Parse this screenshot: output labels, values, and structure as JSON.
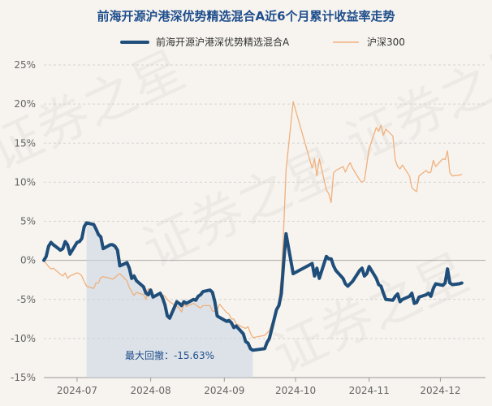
{
  "chart_data": {
    "type": "line",
    "title": "前海开源沪港深优势精选混合A近6个月累计收益率走势",
    "xlabel": "",
    "ylabel": "",
    "y_unit": "%",
    "ylim": [
      -15,
      25
    ],
    "y_ticks": [
      -15,
      -10,
      -5,
      0,
      5,
      10,
      15,
      20,
      25
    ],
    "y_tick_labels": [
      "-15%",
      "-10%",
      "-5%",
      "0%",
      "5%",
      "10%",
      "15%",
      "20%",
      "25%"
    ],
    "x_range": [
      "2024-06-17",
      "2024-12-20"
    ],
    "x_ticks": [
      "2024-07-01",
      "2024-08-01",
      "2024-09-01",
      "2024-10-01",
      "2024-11-01",
      "2024-12-01"
    ],
    "x_tick_labels": [
      "2024-07",
      "2024-08",
      "2024-09",
      "2024-10",
      "2024-11",
      "2024-12"
    ],
    "grid": true,
    "legend_position": "top",
    "series": [
      {
        "name": "前海开源沪港深优势精选混合A",
        "color": "#1f4e7a",
        "points": [
          [
            "2024-06-17",
            0.0
          ],
          [
            "2024-06-18",
            0.5
          ],
          [
            "2024-06-19",
            1.8
          ],
          [
            "2024-06-20",
            2.3
          ],
          [
            "2024-06-21",
            2.0
          ],
          [
            "2024-06-24",
            1.3
          ],
          [
            "2024-06-25",
            1.5
          ],
          [
            "2024-06-26",
            2.4
          ],
          [
            "2024-06-27",
            2.0
          ],
          [
            "2024-06-28",
            0.8
          ],
          [
            "2024-07-01",
            2.3
          ],
          [
            "2024-07-02",
            2.4
          ],
          [
            "2024-07-03",
            2.8
          ],
          [
            "2024-07-04",
            4.3
          ],
          [
            "2024-07-05",
            4.8
          ],
          [
            "2024-07-08",
            4.6
          ],
          [
            "2024-07-09",
            4.0
          ],
          [
            "2024-07-10",
            3.3
          ],
          [
            "2024-07-11",
            3.0
          ],
          [
            "2024-07-12",
            1.5
          ],
          [
            "2024-07-15",
            2.0
          ],
          [
            "2024-07-16",
            2.0
          ],
          [
            "2024-07-17",
            1.8
          ],
          [
            "2024-07-18",
            1.3
          ],
          [
            "2024-07-19",
            -0.7
          ],
          [
            "2024-07-22",
            -0.3
          ],
          [
            "2024-07-23",
            -1.0
          ],
          [
            "2024-07-24",
            -2.3
          ],
          [
            "2024-07-25",
            -2.0
          ],
          [
            "2024-07-26",
            -2.6
          ],
          [
            "2024-07-29",
            -3.4
          ],
          [
            "2024-07-30",
            -4.2
          ],
          [
            "2024-07-31",
            -4.4
          ],
          [
            "2024-08-01",
            -3.8
          ],
          [
            "2024-08-02",
            -4.7
          ],
          [
            "2024-08-05",
            -4.2
          ],
          [
            "2024-08-06",
            -4.8
          ],
          [
            "2024-08-07",
            -5.7
          ],
          [
            "2024-08-08",
            -7.1
          ],
          [
            "2024-08-09",
            -7.4
          ],
          [
            "2024-08-12",
            -5.3
          ],
          [
            "2024-08-13",
            -5.5
          ],
          [
            "2024-08-14",
            -5.8
          ],
          [
            "2024-08-15",
            -5.3
          ],
          [
            "2024-08-16",
            -5.5
          ],
          [
            "2024-08-19",
            -5.0
          ],
          [
            "2024-08-20",
            -5.1
          ],
          [
            "2024-08-21",
            -4.6
          ],
          [
            "2024-08-22",
            -4.4
          ],
          [
            "2024-08-23",
            -4.0
          ],
          [
            "2024-08-26",
            -3.8
          ],
          [
            "2024-08-27",
            -4.1
          ],
          [
            "2024-08-28",
            -5.3
          ],
          [
            "2024-08-29",
            -7.1
          ],
          [
            "2024-08-30",
            -7.3
          ],
          [
            "2024-09-02",
            -7.8
          ],
          [
            "2024-09-03",
            -7.7
          ],
          [
            "2024-09-04",
            -8.0
          ],
          [
            "2024-09-05",
            -8.6
          ],
          [
            "2024-09-06",
            -8.4
          ],
          [
            "2024-09-09",
            -9.4
          ],
          [
            "2024-09-10",
            -10.4
          ],
          [
            "2024-09-11",
            -10.6
          ],
          [
            "2024-09-12",
            -11.3
          ],
          [
            "2024-09-13",
            -11.5
          ],
          [
            "2024-09-18",
            -11.3
          ],
          [
            "2024-09-19",
            -10.5
          ],
          [
            "2024-09-20",
            -10.0
          ],
          [
            "2024-09-23",
            -6.3
          ],
          [
            "2024-09-24",
            -5.8
          ],
          [
            "2024-09-25",
            -4.3
          ],
          [
            "2024-09-26",
            -0.3
          ],
          [
            "2024-09-27",
            3.4
          ],
          [
            "2024-09-30",
            -1.7
          ],
          [
            "2024-10-08",
            -0.4
          ],
          [
            "2024-10-09",
            -2.0
          ],
          [
            "2024-10-10",
            -1.0
          ],
          [
            "2024-10-11",
            -2.3
          ],
          [
            "2024-10-14",
            0.5
          ],
          [
            "2024-10-15",
            0.2
          ],
          [
            "2024-10-16",
            0.2
          ],
          [
            "2024-10-17",
            -0.7
          ],
          [
            "2024-10-18",
            -1.3
          ],
          [
            "2024-10-21",
            -2.3
          ],
          [
            "2024-10-22",
            -3.0
          ],
          [
            "2024-10-23",
            -3.3
          ],
          [
            "2024-10-24",
            -3.0
          ],
          [
            "2024-10-25",
            -2.7
          ],
          [
            "2024-10-28",
            -1.3
          ],
          [
            "2024-10-29",
            -1.0
          ],
          [
            "2024-10-30",
            -2.0
          ],
          [
            "2024-10-31",
            -1.7
          ],
          [
            "2024-11-01",
            -0.8
          ],
          [
            "2024-11-04",
            -2.3
          ],
          [
            "2024-11-05",
            -3.1
          ],
          [
            "2024-11-06",
            -3.3
          ],
          [
            "2024-11-07",
            -4.2
          ],
          [
            "2024-11-08",
            -5.0
          ],
          [
            "2024-11-11",
            -5.1
          ],
          [
            "2024-11-12",
            -4.6
          ],
          [
            "2024-11-13",
            -4.3
          ],
          [
            "2024-11-14",
            -5.3
          ],
          [
            "2024-11-15",
            -5.0
          ],
          [
            "2024-11-18",
            -4.6
          ],
          [
            "2024-11-19",
            -4.2
          ],
          [
            "2024-11-20",
            -5.5
          ],
          [
            "2024-11-21",
            -5.4
          ],
          [
            "2024-11-22",
            -4.7
          ],
          [
            "2024-11-25",
            -4.4
          ],
          [
            "2024-11-26",
            -4.2
          ],
          [
            "2024-11-27",
            -4.6
          ],
          [
            "2024-11-28",
            -3.6
          ],
          [
            "2024-11-29",
            -3.0
          ],
          [
            "2024-12-02",
            -3.2
          ],
          [
            "2024-12-03",
            -2.9
          ],
          [
            "2024-12-04",
            -1.1
          ],
          [
            "2024-12-05",
            -2.9
          ],
          [
            "2024-12-06",
            -3.1
          ],
          [
            "2024-12-09",
            -3.0
          ],
          [
            "2024-12-10",
            -2.9
          ]
        ]
      },
      {
        "name": "沪深300",
        "color": "#f0b07d",
        "points": [
          [
            "2024-06-17",
            0.0
          ],
          [
            "2024-06-18",
            -0.4
          ],
          [
            "2024-06-19",
            -0.8
          ],
          [
            "2024-06-20",
            -1.1
          ],
          [
            "2024-06-21",
            -1.0
          ],
          [
            "2024-06-24",
            -1.8
          ],
          [
            "2024-06-25",
            -2.0
          ],
          [
            "2024-06-26",
            -1.6
          ],
          [
            "2024-06-27",
            -2.3
          ],
          [
            "2024-06-28",
            -2.0
          ],
          [
            "2024-07-01",
            -1.6
          ],
          [
            "2024-07-02",
            -1.7
          ],
          [
            "2024-07-03",
            -2.0
          ],
          [
            "2024-07-04",
            -2.7
          ],
          [
            "2024-07-05",
            -3.3
          ],
          [
            "2024-07-08",
            -3.6
          ],
          [
            "2024-07-09",
            -2.9
          ],
          [
            "2024-07-10",
            -2.9
          ],
          [
            "2024-07-11",
            -2.2
          ],
          [
            "2024-07-12",
            -2.1
          ],
          [
            "2024-07-15",
            -2.3
          ],
          [
            "2024-07-16",
            -2.4
          ],
          [
            "2024-07-17",
            -2.2
          ],
          [
            "2024-07-18",
            -1.9
          ],
          [
            "2024-07-19",
            -1.7
          ],
          [
            "2024-07-22",
            -2.6
          ],
          [
            "2024-07-23",
            -3.5
          ],
          [
            "2024-07-24",
            -4.0
          ],
          [
            "2024-07-25",
            -4.5
          ],
          [
            "2024-07-26",
            -4.1
          ],
          [
            "2024-07-29",
            -4.4
          ],
          [
            "2024-07-30",
            -5.0
          ],
          [
            "2024-07-31",
            -3.6
          ],
          [
            "2024-08-01",
            -4.0
          ],
          [
            "2024-08-02",
            -4.6
          ],
          [
            "2024-08-05",
            -4.4
          ],
          [
            "2024-08-06",
            -4.4
          ],
          [
            "2024-08-07",
            -4.6
          ],
          [
            "2024-08-08",
            -5.0
          ],
          [
            "2024-08-09",
            -5.3
          ],
          [
            "2024-08-12",
            -5.9
          ],
          [
            "2024-08-13",
            -6.1
          ],
          [
            "2024-08-14",
            -6.6
          ],
          [
            "2024-08-15",
            -5.6
          ],
          [
            "2024-08-16",
            -5.9
          ],
          [
            "2024-08-19",
            -5.5
          ],
          [
            "2024-08-20",
            -5.7
          ],
          [
            "2024-08-21",
            -5.9
          ],
          [
            "2024-08-22",
            -6.1
          ],
          [
            "2024-08-23",
            -5.8
          ],
          [
            "2024-08-26",
            -5.8
          ],
          [
            "2024-08-27",
            -6.5
          ],
          [
            "2024-08-28",
            -6.5
          ],
          [
            "2024-08-29",
            -6.4
          ],
          [
            "2024-08-30",
            -5.6
          ],
          [
            "2024-09-02",
            -6.7
          ],
          [
            "2024-09-03",
            -6.9
          ],
          [
            "2024-09-04",
            -7.5
          ],
          [
            "2024-09-05",
            -7.5
          ],
          [
            "2024-09-06",
            -8.1
          ],
          [
            "2024-09-09",
            -8.6
          ],
          [
            "2024-09-10",
            -8.7
          ],
          [
            "2024-09-11",
            -8.5
          ],
          [
            "2024-09-12",
            -9.3
          ],
          [
            "2024-09-13",
            -9.9
          ],
          [
            "2024-09-18",
            -9.6
          ],
          [
            "2024-09-19",
            -9.3
          ],
          [
            "2024-09-20",
            -9.0
          ],
          [
            "2024-09-23",
            -6.2
          ],
          [
            "2024-09-24",
            -5.2
          ],
          [
            "2024-09-25",
            -2.0
          ],
          [
            "2024-09-26",
            4.0
          ],
          [
            "2024-09-27",
            11.5
          ],
          [
            "2024-09-30",
            20.3
          ],
          [
            "2024-10-08",
            11.8
          ],
          [
            "2024-10-09",
            13.0
          ],
          [
            "2024-10-10",
            10.8
          ],
          [
            "2024-10-11",
            13.0
          ],
          [
            "2024-10-14",
            9.0
          ],
          [
            "2024-10-15",
            8.5
          ],
          [
            "2024-10-16",
            7.4
          ],
          [
            "2024-10-17",
            11.2
          ],
          [
            "2024-10-18",
            11.5
          ],
          [
            "2024-10-21",
            12.0
          ],
          [
            "2024-10-22",
            11.3
          ],
          [
            "2024-10-23",
            12.0
          ],
          [
            "2024-10-24",
            12.5
          ],
          [
            "2024-10-25",
            11.8
          ],
          [
            "2024-10-28",
            10.3
          ],
          [
            "2024-10-29",
            10.0
          ],
          [
            "2024-10-30",
            10.2
          ],
          [
            "2024-10-31",
            12.3
          ],
          [
            "2024-11-01",
            14.3
          ],
          [
            "2024-11-04",
            17.0
          ],
          [
            "2024-11-05",
            16.5
          ],
          [
            "2024-11-06",
            17.3
          ],
          [
            "2024-11-07",
            16.0
          ],
          [
            "2024-11-08",
            16.8
          ],
          [
            "2024-11-11",
            15.9
          ],
          [
            "2024-11-12",
            12.8
          ],
          [
            "2024-11-13",
            12.0
          ],
          [
            "2024-11-14",
            11.7
          ],
          [
            "2024-11-15",
            12.2
          ],
          [
            "2024-11-18",
            10.8
          ],
          [
            "2024-11-19",
            9.3
          ],
          [
            "2024-11-20",
            9.0
          ],
          [
            "2024-11-21",
            8.8
          ],
          [
            "2024-11-22",
            10.8
          ],
          [
            "2024-11-25",
            11.5
          ],
          [
            "2024-11-26",
            11.2
          ],
          [
            "2024-11-27",
            11.3
          ],
          [
            "2024-11-28",
            12.8
          ],
          [
            "2024-11-29",
            12.0
          ],
          [
            "2024-12-02",
            13.0
          ],
          [
            "2024-12-03",
            12.9
          ],
          [
            "2024-12-04",
            14.0
          ],
          [
            "2024-12-05",
            11.2
          ],
          [
            "2024-12-06",
            10.8
          ],
          [
            "2024-12-09",
            10.9
          ],
          [
            "2024-12-10",
            11.0
          ]
        ]
      }
    ],
    "max_drawdown": {
      "label": "最大回撤：-15.63%",
      "start": "2024-07-05",
      "end": "2024-09-13"
    }
  },
  "watermark": "证券之星"
}
